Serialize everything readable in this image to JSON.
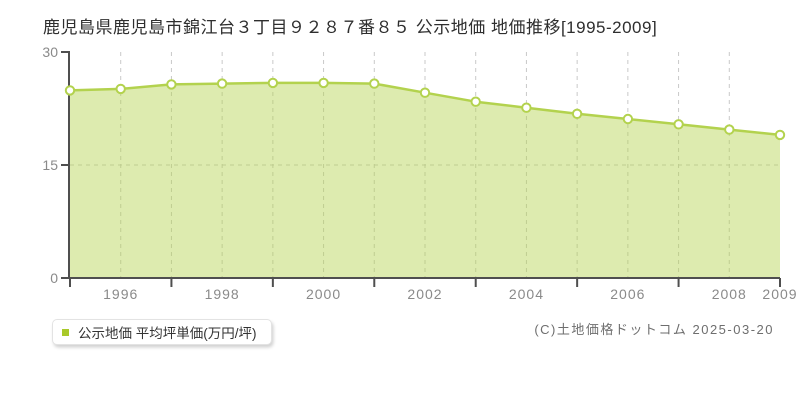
{
  "title": "鹿児島県鹿児島市錦江台３丁目９２８７番８５ 公示地価 地価推移[1995-2009]",
  "legend": {
    "label": "公示地価 平均坪単価(万円/坪)",
    "marker_color": "#a9c92a"
  },
  "footer": {
    "copyright": "(C)土地価格ドットコム 2025-03-20"
  },
  "chart_data": {
    "type": "area",
    "title": "鹿児島県鹿児島市錦江台３丁目９２８７番８５ 公示地価 地価推移[1995-2009]",
    "x": [
      1995,
      1996,
      1997,
      1998,
      1999,
      2000,
      2001,
      2002,
      2003,
      2004,
      2005,
      2006,
      2007,
      2008,
      2009
    ],
    "series": [
      {
        "name": "公示地価 平均坪単価(万円/坪)",
        "values": [
          24.9,
          25.1,
          25.7,
          25.8,
          25.9,
          25.9,
          25.8,
          24.6,
          23.4,
          22.6,
          21.8,
          21.1,
          20.4,
          19.7,
          19.0
        ]
      }
    ],
    "xlabel": "",
    "ylabel": "",
    "ylim": [
      0,
      30
    ],
    "yticks": [
      0,
      15,
      30
    ],
    "xtick_labels": [
      "1996",
      "1998",
      "2000",
      "2002",
      "2004",
      "2006",
      "2008",
      "2009"
    ],
    "grid": "dashed",
    "legend_position": "bottom-left",
    "colors": {
      "line": "#b3d24e",
      "fill": "#b3d24e",
      "fill_opacity": 0.45,
      "marker_fill": "#ffffff",
      "grid": "#c9c9c9",
      "axis": "#4f4f4f",
      "tick_text": "#8a8a8a"
    }
  }
}
